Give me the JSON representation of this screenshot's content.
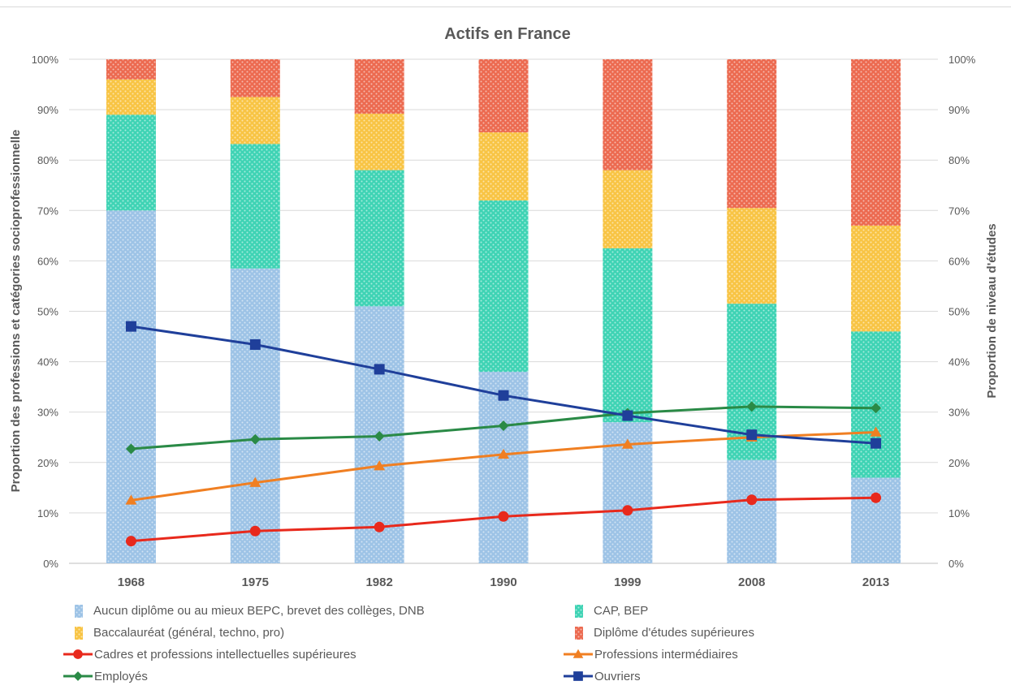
{
  "chart_data": {
    "type": "bar",
    "title": "Actifs en France",
    "ylabel_left": "Proportion des professions et catégories socioprofessionnelle",
    "ylabel_right": "Proportion de niveau d'études",
    "categories": [
      "1968",
      "1975",
      "1982",
      "1990",
      "1999",
      "2008",
      "2013"
    ],
    "ylim": [
      0,
      100
    ],
    "yticks": [
      "0%",
      "10%",
      "20%",
      "30%",
      "40%",
      "50%",
      "60%",
      "70%",
      "80%",
      "90%",
      "100%"
    ],
    "grid": true,
    "legend_position": "bottom",
    "bar_series": [
      {
        "name": "Aucun diplôme ou au mieux BEPC, brevet des collèges, DNB",
        "color": "#9dc3e6",
        "values": [
          70,
          58.5,
          51,
          38,
          28,
          20.5,
          17
        ]
      },
      {
        "name": "CAP, BEP",
        "color": "#3fd3b4",
        "values": [
          19,
          24.7,
          27,
          34,
          34.5,
          31,
          29
        ]
      },
      {
        "name": "Baccalauréat (général, techno, pro)",
        "color": "#f8c444",
        "values": [
          7,
          9.3,
          11.2,
          13.5,
          15.5,
          19,
          21
        ]
      },
      {
        "name": "Diplôme d'études supérieures",
        "color": "#ec6a50",
        "values": [
          4,
          7.5,
          10.8,
          14.5,
          22,
          29.5,
          33
        ]
      }
    ],
    "line_series": [
      {
        "name": "Cadres et professions intellectuelles supérieures",
        "color": "#e8291c",
        "marker": "circle",
        "values": [
          4.4,
          6.4,
          7.2,
          9.3,
          10.5,
          12.6,
          13
        ]
      },
      {
        "name": "Professions intermédiaires",
        "color": "#f07f22",
        "marker": "triangle",
        "values": [
          12.5,
          16,
          19.3,
          21.6,
          23.6,
          25,
          26
        ]
      },
      {
        "name": "Employés",
        "color": "#2a8a46",
        "marker": "diamond",
        "values": [
          22.7,
          24.6,
          25.2,
          27.3,
          29.8,
          31.1,
          30.8
        ]
      },
      {
        "name": "Ouvriers",
        "color": "#1f3f9a",
        "marker": "square",
        "values": [
          47,
          43.4,
          38.5,
          33.3,
          29.3,
          25.5,
          23.8
        ]
      }
    ]
  }
}
